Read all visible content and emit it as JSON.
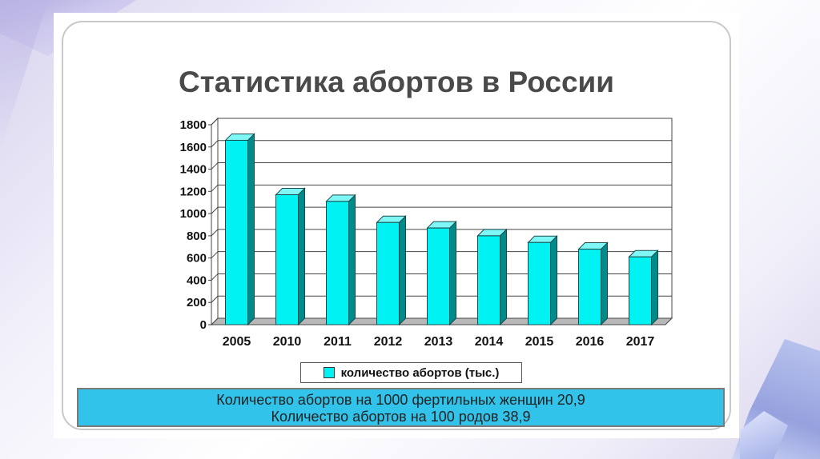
{
  "slide": {
    "title": "Статистика абортов в России",
    "info_lines": [
      "Количество абортов на 1000 фертильных женщин 20,9",
      "Количество абортов на 100 родов 38,9"
    ]
  },
  "colors": {
    "bar_front": "#00f2f2",
    "bar_side": "#008a8a",
    "bar_top": "#7ff7f7",
    "info_box": "#31c3ea"
  },
  "chart_data": {
    "type": "bar",
    "categories": [
      "2005",
      "2010",
      "2011",
      "2012",
      "2013",
      "2014",
      "2015",
      "2016",
      "2017"
    ],
    "series": [
      {
        "name": "количество абортов (тыс.)",
        "values": [
          1660,
          1170,
          1110,
          920,
          870,
          800,
          740,
          680,
          610
        ]
      }
    ],
    "ylim": [
      0,
      1800
    ],
    "yticks": [
      "0",
      "200",
      "400",
      "600",
      "800",
      "1000",
      "1200",
      "1400",
      "1600",
      "1800"
    ],
    "grid": true,
    "legend_position": "bottom"
  }
}
